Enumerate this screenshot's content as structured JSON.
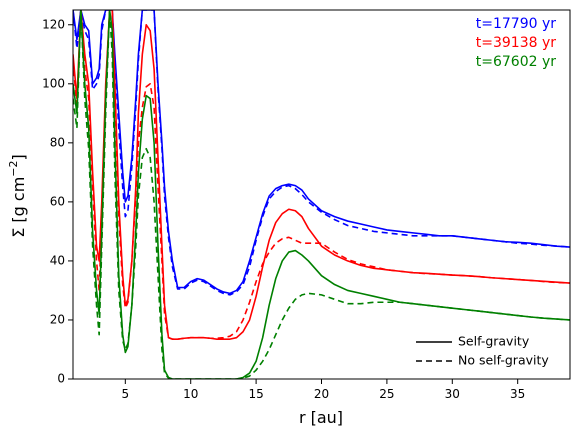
{
  "chart_data": {
    "type": "line",
    "xlabel": "r [au]",
    "ylabel_prefix": "Σ [g cm",
    "ylabel_exp": "−2",
    "ylabel_suffix": "]",
    "xlim": [
      1,
      39
    ],
    "ylim": [
      0,
      125
    ],
    "xticks": [
      5,
      10,
      15,
      20,
      25,
      30,
      35
    ],
    "yticks": [
      0,
      20,
      40,
      60,
      80,
      100,
      120
    ],
    "time_labels": [
      {
        "text": "t=17790 yr",
        "color": "#0000ff"
      },
      {
        "text": "t=39138 yr",
        "color": "#ff0000"
      },
      {
        "text": "t=67602 yr",
        "color": "#008000"
      }
    ],
    "legend": [
      {
        "label": "Self-gravity",
        "style": "solid"
      },
      {
        "label": "No self-gravity",
        "style": "dashed"
      }
    ],
    "series": [
      {
        "color": "#0000ff",
        "style": "solid",
        "x": [
          1.0,
          1.3,
          1.6,
          1.9,
          2.2,
          2.5,
          2.8,
          3.0,
          3.2,
          3.5,
          3.8,
          4.0,
          4.2,
          4.5,
          4.8,
          5.0,
          5.2,
          5.5,
          5.8,
          6.0,
          6.3,
          6.6,
          6.9,
          7.2,
          7.5,
          7.8,
          8.0,
          8.3,
          8.6,
          9.0,
          9.5,
          10.0,
          10.5,
          11.0,
          11.5,
          12.0,
          12.5,
          13.0,
          13.5,
          14.0,
          14.5,
          15.0,
          15.5,
          16.0,
          16.5,
          17.0,
          17.5,
          18.0,
          18.5,
          19.0,
          20.0,
          21.0,
          22.0,
          23.0,
          24.0,
          25.0,
          26.0,
          27.0,
          28.0,
          29.0,
          30.0,
          31.0,
          32.0,
          33.0,
          34.0,
          35.0,
          36.0,
          37.0,
          38.0,
          39.0
        ],
        "y": [
          125,
          115,
          125,
          120,
          118,
          100,
          102,
          105,
          120,
          125,
          125,
          125,
          110,
          90,
          70,
          60,
          62,
          75,
          95,
          110,
          125,
          125,
          125,
          125,
          100,
          80,
          65,
          50,
          40,
          31,
          31,
          33,
          34,
          33.5,
          32,
          30.5,
          29.5,
          29,
          30,
          33,
          40,
          48,
          56,
          62,
          64.5,
          65.5,
          66,
          65.5,
          64,
          61,
          57,
          55,
          53.5,
          52.5,
          51.5,
          50.5,
          50,
          49.5,
          49,
          48.5,
          48.5,
          48,
          47.5,
          47,
          46.5,
          46.3,
          46,
          45.5,
          45,
          44.7
        ]
      },
      {
        "color": "#0000ff",
        "style": "dashed",
        "x": [
          1.0,
          1.3,
          1.6,
          1.9,
          2.2,
          2.5,
          2.8,
          3.0,
          3.2,
          3.5,
          3.8,
          4.0,
          4.2,
          4.5,
          4.8,
          5.0,
          5.2,
          5.5,
          5.8,
          6.0,
          6.3,
          6.6,
          6.9,
          7.2,
          7.5,
          7.8,
          8.0,
          8.3,
          8.6,
          9.0,
          9.5,
          10.0,
          10.5,
          11.0,
          11.5,
          12.0,
          12.5,
          13.0,
          13.5,
          14.0,
          14.5,
          15.0,
          15.5,
          16.0,
          16.5,
          17.0,
          17.5,
          18.0,
          18.5,
          19.0,
          20.0,
          21.0,
          22.0,
          23.0,
          24.0,
          25.0,
          26.0,
          27.0,
          28.0,
          29.0,
          30.0,
          31.0,
          32.0,
          33.0,
          34.0,
          35.0,
          36.0,
          37.0,
          38.0,
          39.0
        ],
        "y": [
          125,
          112,
          125,
          118,
          115,
          98,
          100,
          103,
          118,
          125,
          125,
          125,
          108,
          85,
          65,
          55,
          57,
          72,
          92,
          108,
          125,
          125,
          125,
          125,
          98,
          78,
          62,
          48,
          38,
          30.5,
          30.5,
          32.5,
          33.5,
          33,
          31.5,
          30,
          29,
          28.5,
          29.5,
          32,
          38,
          47,
          55,
          61,
          63.5,
          65,
          65.5,
          64.5,
          62.5,
          60,
          56.5,
          54,
          52,
          51,
          50,
          49.5,
          49,
          48.5,
          48.5,
          48.5,
          48.5,
          48,
          47.5,
          47,
          46.5,
          46,
          45.7,
          45.3,
          45,
          44.7
        ]
      },
      {
        "color": "#ff0000",
        "style": "solid",
        "x": [
          1.0,
          1.3,
          1.6,
          1.9,
          2.2,
          2.5,
          2.8,
          3.0,
          3.2,
          3.5,
          3.8,
          4.0,
          4.2,
          4.5,
          4.8,
          5.0,
          5.2,
          5.5,
          5.8,
          6.0,
          6.3,
          6.6,
          6.9,
          7.2,
          7.5,
          7.8,
          8.0,
          8.3,
          8.6,
          9.0,
          9.5,
          10.0,
          10.5,
          11.0,
          11.5,
          12.0,
          12.5,
          13.0,
          13.5,
          14.0,
          14.5,
          15.0,
          15.5,
          16.0,
          16.5,
          17.0,
          17.5,
          18.0,
          18.5,
          19.0,
          20.0,
          21.0,
          22.0,
          23.0,
          24.0,
          25.0,
          26.0,
          27.0,
          28.0,
          29.0,
          30.0,
          31.0,
          32.0,
          33.0,
          34.0,
          35.0,
          36.0,
          37.0,
          38.0,
          39.0
        ],
        "y": [
          110,
          95,
          125,
          110,
          100,
          70,
          45,
          40,
          60,
          100,
          125,
          125,
          100,
          60,
          35,
          25,
          27,
          40,
          65,
          90,
          110,
          120,
          118,
          105,
          75,
          45,
          25,
          14,
          13.5,
          13.5,
          13.8,
          14,
          14,
          14,
          13.8,
          13.5,
          13.5,
          13.5,
          14,
          16,
          20,
          28,
          38,
          47,
          53,
          56,
          57.5,
          57,
          55,
          51,
          45,
          42,
          40,
          38.5,
          37.5,
          37,
          36.5,
          36,
          35.8,
          35.5,
          35.2,
          35,
          34.7,
          34.3,
          34,
          33.7,
          33.4,
          33.1,
          32.8,
          32.5
        ]
      },
      {
        "color": "#ff0000",
        "style": "dashed",
        "x": [
          1.0,
          1.3,
          1.6,
          1.9,
          2.2,
          2.5,
          2.8,
          3.0,
          3.2,
          3.5,
          3.8,
          4.0,
          4.2,
          4.5,
          4.8,
          5.0,
          5.2,
          5.5,
          5.8,
          6.0,
          6.3,
          6.6,
          6.9,
          7.2,
          7.5,
          7.8,
          8.0,
          8.3,
          8.6,
          9.0,
          9.5,
          10.0,
          10.5,
          11.0,
          11.5,
          12.0,
          12.5,
          13.0,
          13.5,
          14.0,
          14.5,
          15.0,
          15.5,
          16.0,
          16.5,
          17.0,
          17.5,
          18.0,
          18.5,
          19.0,
          20.0,
          21.0,
          22.0,
          23.0,
          24.0,
          25.0,
          26.0,
          27.0,
          28.0,
          29.0,
          30.0,
          31.0,
          32.0,
          33.0,
          34.0,
          35.0,
          36.0,
          37.0,
          38.0,
          39.0
        ],
        "y": [
          108,
          92,
          125,
          105,
          95,
          65,
          40,
          30,
          55,
          98,
          125,
          125,
          96,
          55,
          32,
          24,
          26,
          40,
          62,
          80,
          92,
          99,
          100,
          92,
          65,
          40,
          22,
          14,
          13.5,
          13.5,
          13.8,
          14,
          14,
          14,
          13.8,
          13.8,
          14,
          14.5,
          16,
          20,
          26,
          33,
          39,
          43,
          46,
          47.5,
          48,
          47,
          46,
          46,
          46,
          43,
          40.5,
          39,
          38,
          37,
          36.5,
          36,
          35.7,
          35.5,
          35.2,
          35,
          34.7,
          34.3,
          34,
          33.7,
          33.4,
          33,
          32.7,
          32.5
        ]
      },
      {
        "color": "#008000",
        "style": "solid",
        "x": [
          1.0,
          1.3,
          1.6,
          1.9,
          2.2,
          2.5,
          2.8,
          3.0,
          3.2,
          3.5,
          3.8,
          4.0,
          4.2,
          4.5,
          4.8,
          5.0,
          5.2,
          5.5,
          5.8,
          6.0,
          6.3,
          6.6,
          6.9,
          7.2,
          7.5,
          7.8,
          8.0,
          8.3,
          8.6,
          9.0,
          9.5,
          10.0,
          10.5,
          11.0,
          11.5,
          12.0,
          12.5,
          13.0,
          13.5,
          14.0,
          14.5,
          15.0,
          15.5,
          16.0,
          16.5,
          17.0,
          17.5,
          18.0,
          18.5,
          19.0,
          20.0,
          21.0,
          22.0,
          23.0,
          24.0,
          25.0,
          26.0,
          27.0,
          28.0,
          29.0,
          30.0,
          31.0,
          32.0,
          33.0,
          34.0,
          35.0,
          36.0,
          37.0,
          38.0,
          39.0
        ],
        "y": [
          100,
          90,
          125,
          100,
          85,
          50,
          30,
          22,
          50,
          95,
          125,
          118,
          80,
          35,
          15,
          9,
          11,
          25,
          50,
          70,
          88,
          96,
          95,
          80,
          45,
          15,
          3,
          0.5,
          0,
          0,
          0,
          0,
          0,
          0,
          0,
          0,
          0,
          0,
          0,
          0.5,
          2,
          6,
          14,
          25,
          34,
          40,
          43,
          43.5,
          42,
          40,
          35,
          32,
          30,
          29,
          28,
          27,
          26,
          25.5,
          25,
          24.5,
          24,
          23.5,
          23,
          22.5,
          22,
          21.5,
          21,
          20.6,
          20.3,
          20
        ]
      },
      {
        "color": "#008000",
        "style": "dashed",
        "x": [
          1.0,
          1.3,
          1.6,
          1.9,
          2.2,
          2.5,
          2.8,
          3.0,
          3.2,
          3.5,
          3.8,
          4.0,
          4.2,
          4.5,
          4.8,
          5.0,
          5.2,
          5.5,
          5.8,
          6.0,
          6.3,
          6.6,
          6.9,
          7.2,
          7.5,
          7.8,
          8.0,
          8.3,
          8.6,
          9.0,
          9.5,
          10.0,
          10.5,
          11.0,
          11.5,
          12.0,
          12.5,
          13.0,
          13.5,
          14.0,
          14.5,
          15.0,
          15.5,
          16.0,
          16.5,
          17.0,
          17.5,
          18.0,
          18.5,
          19.0,
          20.0,
          21.0,
          22.0,
          23.0,
          24.0,
          25.0,
          26.0,
          27.0,
          28.0,
          29.0,
          30.0,
          31.0,
          32.0,
          33.0,
          34.0,
          35.0,
          36.0,
          37.0,
          38.0,
          39.0
        ],
        "y": [
          95,
          85,
          125,
          95,
          78,
          45,
          25,
          15,
          45,
          90,
          125,
          110,
          70,
          30,
          13,
          10,
          12,
          25,
          45,
          62,
          75,
          78,
          75,
          60,
          35,
          10,
          2,
          0.3,
          0,
          0,
          0,
          0,
          0,
          0,
          0,
          0,
          0,
          0,
          0,
          0.3,
          1,
          3,
          6,
          10,
          15,
          20,
          24,
          27,
          28.5,
          29,
          28.5,
          27,
          25.5,
          25.5,
          26,
          26,
          26,
          25.5,
          25,
          24.5,
          24,
          23.5,
          23,
          22.5,
          22,
          21.5,
          21,
          20.6,
          20.3,
          20
        ]
      }
    ]
  }
}
